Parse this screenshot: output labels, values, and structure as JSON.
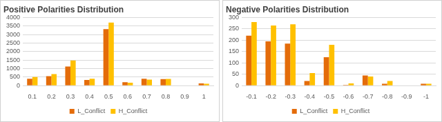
{
  "chart_data": [
    {
      "type": "bar",
      "title": "Positive Polarities Distribution",
      "categories": [
        "0.1",
        "0.2",
        "0.3",
        "0.4",
        "0.5",
        "0.6",
        "0.7",
        "0.8",
        "0.9",
        "1"
      ],
      "series": [
        {
          "name": "L_Conflict",
          "color": "#e46c0a",
          "values": [
            400,
            550,
            1120,
            330,
            3320,
            200,
            400,
            380,
            0,
            130
          ]
        },
        {
          "name": "H_Conflict",
          "color": "#ffc000",
          "values": [
            500,
            680,
            1480,
            400,
            3700,
            170,
            350,
            390,
            0,
            110
          ]
        }
      ],
      "ylim": [
        0,
        4000
      ],
      "yticks": [
        0,
        500,
        1000,
        1500,
        2000,
        2500,
        3000,
        3500,
        4000
      ],
      "grid": true,
      "legend": "bottom"
    },
    {
      "type": "bar",
      "title": "Negative Polarities Distribution",
      "categories": [
        "-0.1",
        "-0.2",
        "-0.3",
        "-0.4",
        "-0.5",
        "-0.6",
        "-0.7",
        "-0.8",
        "-0.9",
        "-1"
      ],
      "series": [
        {
          "name": "L_Conflict",
          "color": "#e46c0a",
          "values": [
            220,
            195,
            185,
            20,
            125,
            3,
            45,
            8,
            0,
            8
          ]
        },
        {
          "name": "H_Conflict",
          "color": "#ffc000",
          "values": [
            280,
            265,
            270,
            55,
            180,
            10,
            40,
            20,
            0,
            8
          ]
        }
      ],
      "ylim": [
        0,
        300
      ],
      "yticks": [
        0,
        50,
        100,
        150,
        200,
        250,
        300
      ],
      "grid": true,
      "legend": "bottom"
    }
  ]
}
